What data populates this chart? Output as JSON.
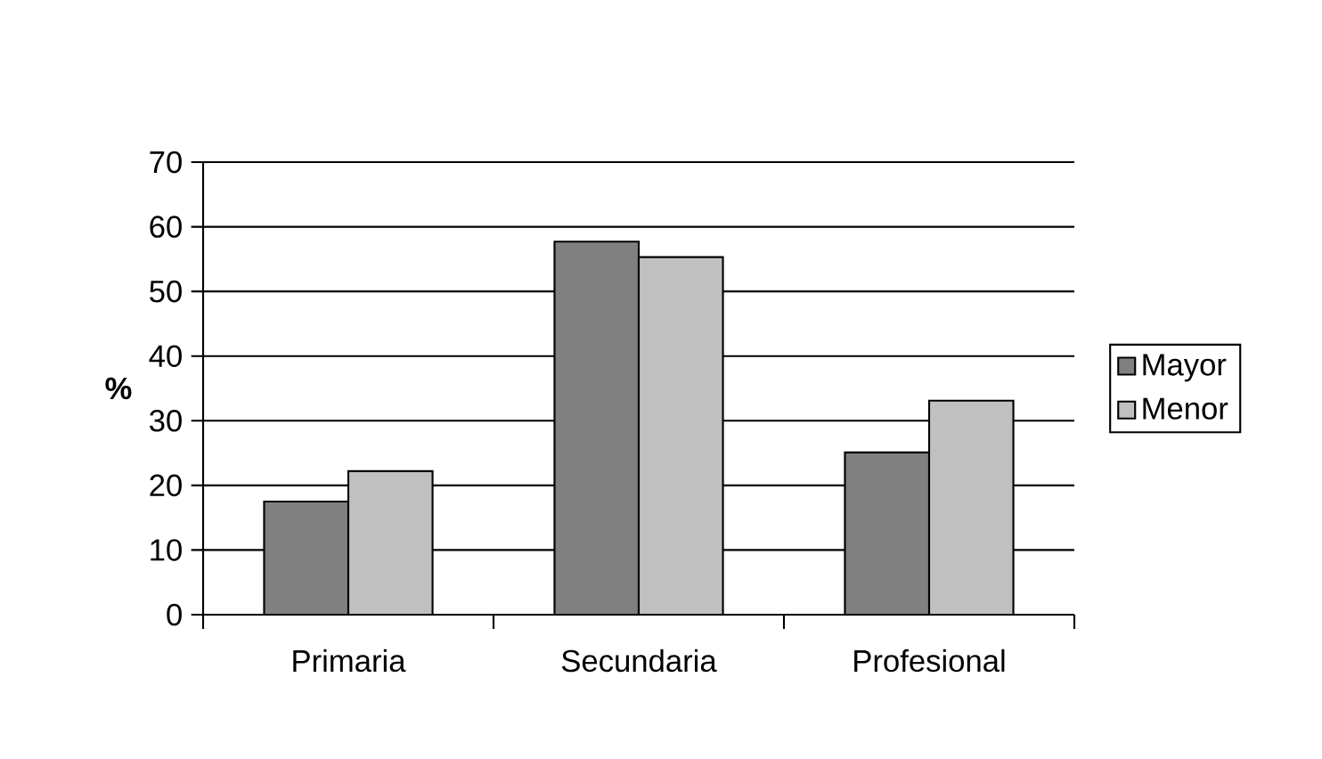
{
  "chart_data": {
    "type": "bar",
    "ylabel": "%",
    "categories": [
      "Primaria",
      "Secundaria",
      "Profesional"
    ],
    "series": [
      {
        "name": "Mayor",
        "color": "#808080",
        "values": [
          17.5,
          57.7,
          25.1
        ]
      },
      {
        "name": "Menor",
        "color": "#c0c0c0",
        "values": [
          22.2,
          55.3,
          33.1
        ]
      }
    ],
    "ylim": [
      0,
      70
    ],
    "yticks": [
      0,
      10,
      20,
      30,
      40,
      50,
      60,
      70
    ],
    "grid": "y",
    "legend": "right"
  }
}
